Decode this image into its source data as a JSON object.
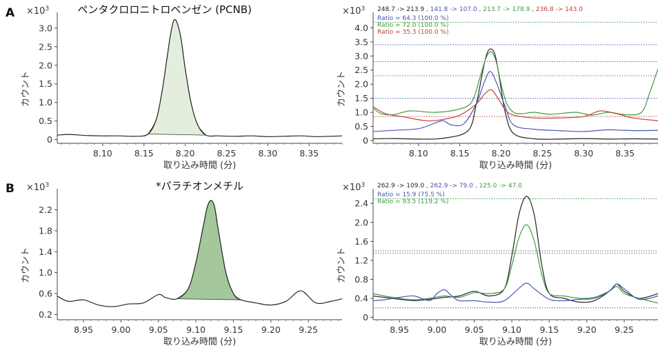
{
  "panel_letters": [
    "A",
    "B"
  ],
  "colors": {
    "black": "#222222",
    "blue": "#4a56b0",
    "green": "#3c9a3c",
    "red": "#c0403a",
    "fill_light": "#e3efdc",
    "fill_dark": "#a5c79c"
  },
  "chart_data": [
    {
      "id": "A-left",
      "type": "line",
      "title": "ペンタクロロニトロベンゼン (PCNB)",
      "xlabel": "取り込み時間 (分)",
      "ylabel": "カウント",
      "y_multiplier": "×10^3",
      "xticks": [
        "8.10",
        "8.15",
        "8.20",
        "8.25",
        "8.30",
        "8.35"
      ],
      "yticks": [
        "0",
        "0.5",
        "1.0",
        "1.5",
        "2.0",
        "2.5",
        "3.0"
      ],
      "xlim": [
        8.045,
        8.39
      ],
      "ylim": [
        -0.1,
        3.35
      ],
      "shaded_peak": [
        8.155,
        8.225
      ],
      "series": [
        {
          "color": "black",
          "x": [
            8.045,
            8.06,
            8.08,
            8.1,
            8.12,
            8.14,
            8.155,
            8.165,
            8.172,
            8.178,
            8.182,
            8.186,
            8.19,
            8.195,
            8.2,
            8.207,
            8.215,
            8.225,
            8.24,
            8.26,
            8.28,
            8.3,
            8.32,
            8.34,
            8.36,
            8.39
          ],
          "y": [
            0.12,
            0.14,
            0.11,
            0.1,
            0.1,
            0.09,
            0.15,
            0.55,
            1.3,
            2.2,
            2.8,
            3.2,
            3.15,
            2.7,
            1.9,
            1.0,
            0.4,
            0.12,
            0.1,
            0.09,
            0.1,
            0.08,
            0.09,
            0.1,
            0.08,
            0.1
          ]
        }
      ]
    },
    {
      "id": "A-right",
      "type": "line",
      "xlabel": "取り込み時間 (分)",
      "ylabel": "カウント",
      "y_multiplier": "×10^3",
      "xticks": [
        "8.10",
        "8.15",
        "8.20",
        "8.25",
        "8.30",
        "8.35"
      ],
      "yticks": [
        "0",
        "0.5",
        "1.0",
        "1.5",
        "2.0",
        "2.5",
        "3.0",
        "3.5",
        "4.0"
      ],
      "xlim": [
        8.045,
        8.39
      ],
      "ylim": [
        -0.1,
        4.45
      ],
      "transitions": [
        {
          "label": "248.7 -> 213.9",
          "color": "black"
        },
        {
          "label": "141.8 -> 107.0",
          "color": "blue"
        },
        {
          "label": "213.7 -> 178.9",
          "color": "green"
        },
        {
          "label": "236.8 -> 143.0",
          "color": "red"
        }
      ],
      "ratios": [
        {
          "label": "Ratio = 64.3 (100.0 %)",
          "color": "blue"
        },
        {
          "label": "Ratio = 72.0 (100.0 %)",
          "color": "green"
        },
        {
          "label": "Ratio = 35.3 (100.0 %)",
          "color": "red"
        }
      ],
      "hlines": [
        {
          "y": 4.2,
          "color": "green"
        },
        {
          "y": 3.4,
          "color": "blue"
        },
        {
          "y": 2.8,
          "color": "red"
        },
        {
          "y": 2.3,
          "color": "green"
        },
        {
          "y": 1.5,
          "color": "blue"
        },
        {
          "y": 0.85,
          "color": "red"
        }
      ],
      "series": [
        {
          "color": "black",
          "x": [
            8.045,
            8.07,
            8.1,
            8.13,
            8.16,
            8.17,
            8.178,
            8.183,
            8.188,
            8.193,
            8.198,
            8.205,
            8.215,
            8.24,
            8.27,
            8.3,
            8.33,
            8.36,
            8.39
          ],
          "y": [
            0.06,
            0.07,
            0.05,
            0.08,
            0.35,
            1.3,
            2.5,
            3.1,
            3.25,
            3.0,
            2.2,
            1.0,
            0.25,
            0.06,
            0.05,
            0.07,
            0.05,
            0.06,
            0.05
          ]
        },
        {
          "color": "green",
          "x": [
            8.045,
            8.055,
            8.07,
            8.09,
            8.12,
            8.15,
            8.165,
            8.175,
            8.182,
            8.188,
            8.194,
            8.2,
            8.207,
            8.215,
            8.225,
            8.24,
            8.26,
            8.29,
            8.31,
            8.33,
            8.35,
            8.37,
            8.38,
            8.39
          ],
          "y": [
            1.15,
            0.95,
            0.92,
            1.05,
            1.0,
            1.12,
            1.4,
            2.3,
            2.95,
            3.15,
            2.8,
            2.0,
            1.3,
            1.0,
            0.95,
            1.0,
            0.93,
            1.0,
            0.9,
            1.0,
            0.92,
            1.0,
            1.7,
            2.55
          ]
        },
        {
          "color": "red",
          "x": [
            8.045,
            8.06,
            8.08,
            8.11,
            8.13,
            8.15,
            8.17,
            8.18,
            8.188,
            8.195,
            8.205,
            8.215,
            8.24,
            8.27,
            8.3,
            8.32,
            8.34,
            8.36,
            8.39
          ],
          "y": [
            1.2,
            0.95,
            0.85,
            0.7,
            0.75,
            0.9,
            1.3,
            1.65,
            1.8,
            1.55,
            1.1,
            0.9,
            0.8,
            0.8,
            0.85,
            1.05,
            0.95,
            0.8,
            0.7
          ]
        },
        {
          "color": "blue",
          "x": [
            8.045,
            8.07,
            8.1,
            8.12,
            8.13,
            8.14,
            8.155,
            8.17,
            8.18,
            8.187,
            8.195,
            8.205,
            8.215,
            8.24,
            8.27,
            8.3,
            8.33,
            8.36,
            8.39
          ],
          "y": [
            0.32,
            0.36,
            0.42,
            0.62,
            0.7,
            0.55,
            0.6,
            1.3,
            2.1,
            2.45,
            2.0,
            1.2,
            0.55,
            0.4,
            0.35,
            0.32,
            0.38,
            0.35,
            0.36
          ]
        }
      ]
    },
    {
      "id": "B-left",
      "type": "line",
      "title": "*パラチオンメチル",
      "xlabel": "取り込み時間 (分)",
      "ylabel": "カウント",
      "y_multiplier": "×10^3",
      "xticks": [
        "8.95",
        "9.00",
        "9.05",
        "9.10",
        "9.15",
        "9.20",
        "9.25"
      ],
      "yticks": [
        "0.2",
        "0.6",
        "1.0",
        "1.4",
        "1.8",
        "2.2"
      ],
      "xlim": [
        8.915,
        9.295
      ],
      "ylim": [
        0.1,
        2.55
      ],
      "shaded_peak": [
        9.075,
        9.16
      ],
      "series": [
        {
          "color": "black",
          "x": [
            8.915,
            8.93,
            8.95,
            8.97,
            8.99,
            9.01,
            9.03,
            9.05,
            9.06,
            9.075,
            9.09,
            9.1,
            9.11,
            9.115,
            9.12,
            9.125,
            9.13,
            9.14,
            9.15,
            9.16,
            9.18,
            9.2,
            9.22,
            9.24,
            9.26,
            9.28,
            9.295
          ],
          "y": [
            0.55,
            0.45,
            0.48,
            0.38,
            0.35,
            0.4,
            0.42,
            0.58,
            0.52,
            0.5,
            0.7,
            1.2,
            1.9,
            2.25,
            2.38,
            2.25,
            1.8,
            1.0,
            0.6,
            0.48,
            0.42,
            0.38,
            0.45,
            0.65,
            0.42,
            0.45,
            0.5
          ]
        }
      ]
    },
    {
      "id": "B-right",
      "type": "line",
      "xlabel": "取り込み時間 (分)",
      "ylabel": "カウント",
      "y_multiplier": "×10^3",
      "xticks": [
        "8.95",
        "9.00",
        "9.05",
        "9.10",
        "9.15",
        "9.20",
        "9.25"
      ],
      "yticks": [
        "0",
        "0.4",
        "0.8",
        "1.2",
        "1.6",
        "2.0",
        "2.4"
      ],
      "xlim": [
        8.915,
        9.295
      ],
      "ylim": [
        -0.05,
        2.65
      ],
      "transitions": [
        {
          "label": "262.9 -> 109.0",
          "color": "black"
        },
        {
          "label": "262.9 -> 79.0",
          "color": "blue"
        },
        {
          "label": "125.0 -> 47.0",
          "color": "green"
        }
      ],
      "ratios": [
        {
          "label": "Ratio = 15.9 (75.5 %)",
          "color": "blue"
        },
        {
          "label": "Ratio = 93.5 (119.2 %)",
          "color": "green"
        }
      ],
      "hlines": [
        {
          "y": 2.5,
          "color": "green"
        },
        {
          "y": 1.4,
          "color": "blue"
        },
        {
          "y": 1.35,
          "color": "green"
        },
        {
          "y": 0.2,
          "color": "blue"
        }
      ],
      "series": [
        {
          "color": "black",
          "x": [
            8.915,
            8.93,
            8.95,
            8.97,
            8.99,
            9.01,
            9.03,
            9.05,
            9.07,
            9.09,
            9.1,
            9.11,
            9.12,
            9.13,
            9.14,
            9.15,
            9.17,
            9.19,
            9.21,
            9.23,
            9.24,
            9.25,
            9.27,
            9.295
          ],
          "y": [
            0.45,
            0.42,
            0.38,
            0.35,
            0.38,
            0.42,
            0.45,
            0.55,
            0.45,
            0.6,
            1.3,
            2.2,
            2.55,
            2.15,
            1.1,
            0.5,
            0.4,
            0.32,
            0.35,
            0.55,
            0.7,
            0.55,
            0.4,
            0.5
          ]
        },
        {
          "color": "green",
          "x": [
            8.915,
            8.93,
            8.95,
            8.97,
            8.99,
            9.01,
            9.03,
            9.05,
            9.07,
            9.09,
            9.1,
            9.11,
            9.12,
            9.13,
            9.14,
            9.15,
            9.17,
            9.19,
            9.21,
            9.23,
            9.24,
            9.25,
            9.27,
            9.295
          ],
          "y": [
            0.5,
            0.45,
            0.4,
            0.37,
            0.4,
            0.45,
            0.42,
            0.52,
            0.5,
            0.6,
            1.1,
            1.7,
            1.95,
            1.6,
            0.9,
            0.5,
            0.45,
            0.4,
            0.42,
            0.55,
            0.65,
            0.5,
            0.4,
            0.3
          ]
        },
        {
          "color": "blue",
          "x": [
            8.915,
            8.93,
            8.95,
            8.97,
            8.99,
            9.0,
            9.01,
            9.02,
            9.03,
            9.05,
            9.07,
            9.09,
            9.11,
            9.12,
            9.13,
            9.15,
            9.17,
            9.19,
            9.21,
            9.23,
            9.24,
            9.25,
            9.27,
            9.295
          ],
          "y": [
            0.35,
            0.37,
            0.42,
            0.45,
            0.35,
            0.5,
            0.58,
            0.45,
            0.35,
            0.35,
            0.32,
            0.35,
            0.62,
            0.72,
            0.6,
            0.38,
            0.35,
            0.38,
            0.4,
            0.55,
            0.7,
            0.6,
            0.38,
            0.45
          ]
        }
      ]
    }
  ]
}
